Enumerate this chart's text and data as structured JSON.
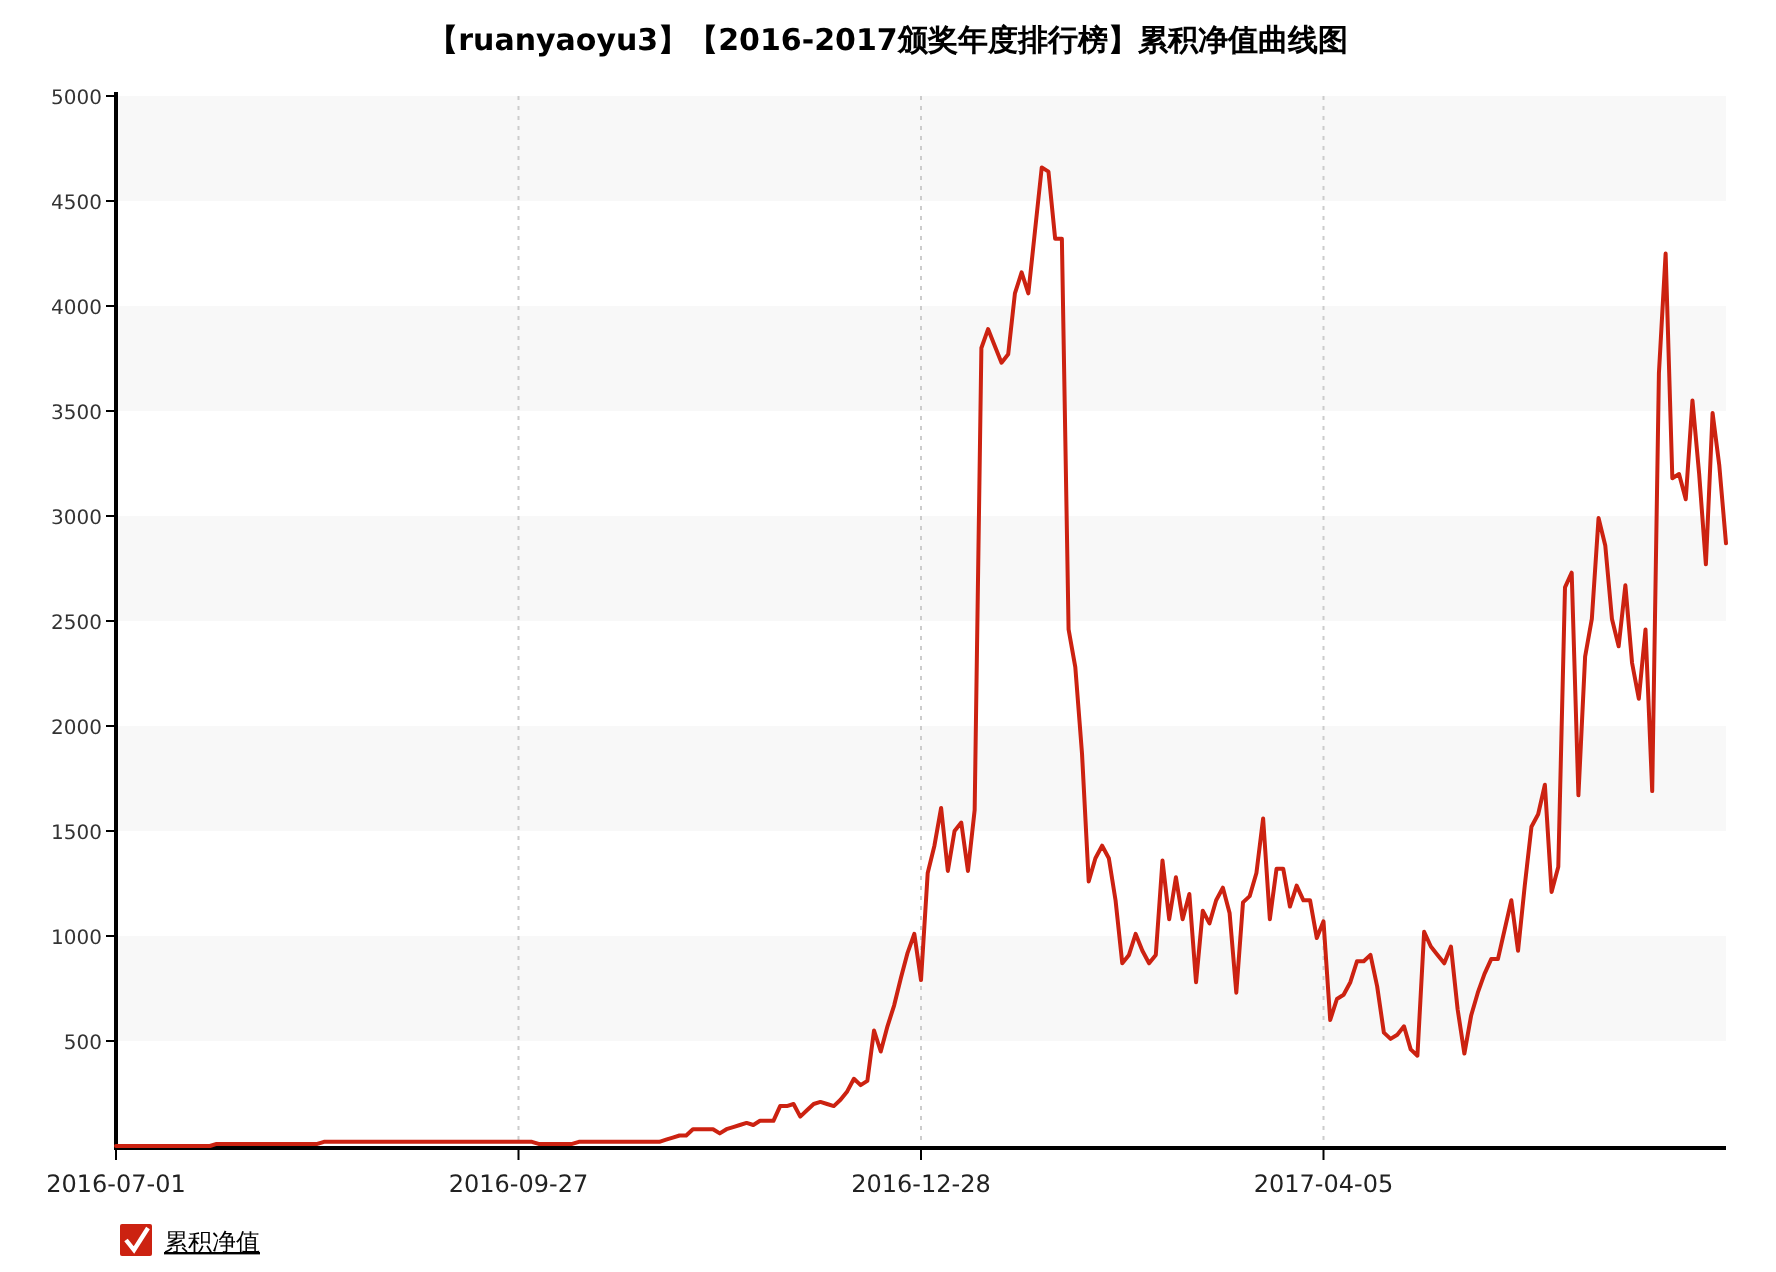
{
  "chart_data": {
    "type": "line",
    "title": "【ruanyaoyu3】【2016-2017颁奖年度排行榜】累积净值曲线图",
    "categories": [
      "2016-07-01",
      null,
      null,
      null,
      null,
      null,
      null,
      null,
      null,
      null,
      null,
      null,
      null,
      null,
      null,
      null,
      null,
      null,
      null,
      null,
      null,
      null,
      null,
      null,
      null,
      null,
      null,
      null,
      null,
      null,
      null,
      null,
      null,
      null,
      null,
      null,
      null,
      null,
      null,
      null,
      null,
      null,
      null,
      null,
      null,
      null,
      null,
      null,
      null,
      null,
      null,
      null,
      null,
      null,
      null,
      null,
      null,
      null,
      null,
      null,
      "2016-09-27",
      null,
      null,
      null,
      null,
      null,
      null,
      null,
      null,
      null,
      null,
      null,
      null,
      null,
      null,
      null,
      null,
      null,
      null,
      null,
      null,
      null,
      null,
      null,
      null,
      null,
      null,
      null,
      null,
      null,
      null,
      null,
      null,
      null,
      null,
      null,
      null,
      null,
      null,
      null,
      null,
      null,
      null,
      null,
      null,
      null,
      null,
      null,
      null,
      null,
      null,
      null,
      null,
      null,
      null,
      null,
      null,
      null,
      null,
      null,
      "2016-12-28",
      null,
      null,
      null,
      null,
      null,
      null,
      null,
      null,
      null,
      null,
      null,
      null,
      null,
      null,
      null,
      null,
      null,
      null,
      null,
      null,
      null,
      null,
      null,
      null,
      null,
      null,
      null,
      null,
      null,
      null,
      null,
      null,
      null,
      null,
      null,
      null,
      null,
      null,
      null,
      null,
      null,
      null,
      null,
      null,
      null,
      null,
      null,
      null,
      null,
      null,
      null,
      null,
      null,
      null,
      null,
      null,
      null,
      null,
      null,
      "2017-04-05",
      null,
      null,
      null,
      null,
      null,
      null,
      null,
      null,
      null,
      null,
      null,
      null,
      null,
      null,
      null,
      null,
      null,
      null,
      null,
      null,
      null,
      null,
      null,
      null,
      null,
      null,
      null,
      null,
      null,
      null,
      null,
      null,
      null,
      null,
      null,
      null,
      null,
      null,
      null,
      null,
      null,
      null,
      null,
      null,
      null,
      null,
      null,
      null,
      null,
      null,
      null,
      null,
      null,
      null,
      null,
      null,
      null,
      null,
      null,
      null
    ],
    "ylim": [
      0,
      5000
    ],
    "yticks": [
      500,
      1000,
      1500,
      2000,
      2500,
      3000,
      3500,
      4000,
      4500,
      5000
    ],
    "grid": true,
    "legend": "bottom left",
    "marker": "none",
    "line_style": "solid",
    "series": [
      {
        "name": "累积净值",
        "color": "#cc2211",
        "values": [
          0,
          0,
          0,
          0,
          0,
          0,
          0,
          0,
          0,
          0,
          0,
          0,
          0,
          0,
          0,
          10,
          10,
          10,
          10,
          10,
          10,
          10,
          10,
          10,
          10,
          10,
          10,
          10,
          10,
          10,
          10,
          20,
          20,
          20,
          20,
          20,
          20,
          20,
          20,
          20,
          20,
          20,
          20,
          20,
          20,
          20,
          20,
          20,
          20,
          20,
          20,
          20,
          20,
          20,
          20,
          20,
          20,
          20,
          20,
          20,
          20,
          20,
          20,
          10,
          10,
          10,
          10,
          10,
          10,
          20,
          20,
          20,
          20,
          20,
          20,
          20,
          20,
          20,
          20,
          20,
          20,
          20,
          30,
          40,
          50,
          50,
          80,
          80,
          80,
          80,
          60,
          80,
          90,
          100,
          110,
          100,
          120,
          120,
          120,
          190,
          190,
          200,
          140,
          170,
          200,
          210,
          200,
          190,
          220,
          260,
          320,
          290,
          310,
          550,
          450,
          570,
          670,
          800,
          920,
          1010,
          790,
          1300,
          1430,
          1610,
          1310,
          1500,
          1540,
          1310,
          1600,
          3800,
          3890,
          3810,
          3730,
          3770,
          4060,
          4160,
          4060,
          4360,
          4660,
          4640,
          4320,
          4320,
          2460,
          2280,
          1870,
          1260,
          1370,
          1430,
          1370,
          1170,
          870,
          910,
          1010,
          930,
          870,
          910,
          1360,
          1080,
          1280,
          1080,
          1200,
          780,
          1120,
          1060,
          1170,
          1230,
          1110,
          730,
          1160,
          1190,
          1300,
          1560,
          1080,
          1320,
          1320,
          1140,
          1240,
          1170,
          1170,
          990,
          1070,
          600,
          700,
          720,
          780,
          880,
          880,
          910,
          760,
          540,
          510,
          530,
          570,
          460,
          430,
          1020,
          950,
          910,
          870,
          950,
          650,
          440,
          620,
          730,
          820,
          890,
          890,
          1030,
          1170,
          930,
          1240,
          1520,
          1580,
          1720,
          1210,
          1330,
          2660,
          2730,
          1670,
          2330,
          2510,
          2990,
          2860,
          2510,
          2380,
          2670,
          2300,
          2130,
          2460,
          1690,
          3680,
          4250,
          3180,
          3200,
          3080,
          3550,
          3200,
          2770,
          3490,
          3240,
          2870
        ]
      }
    ]
  }
}
